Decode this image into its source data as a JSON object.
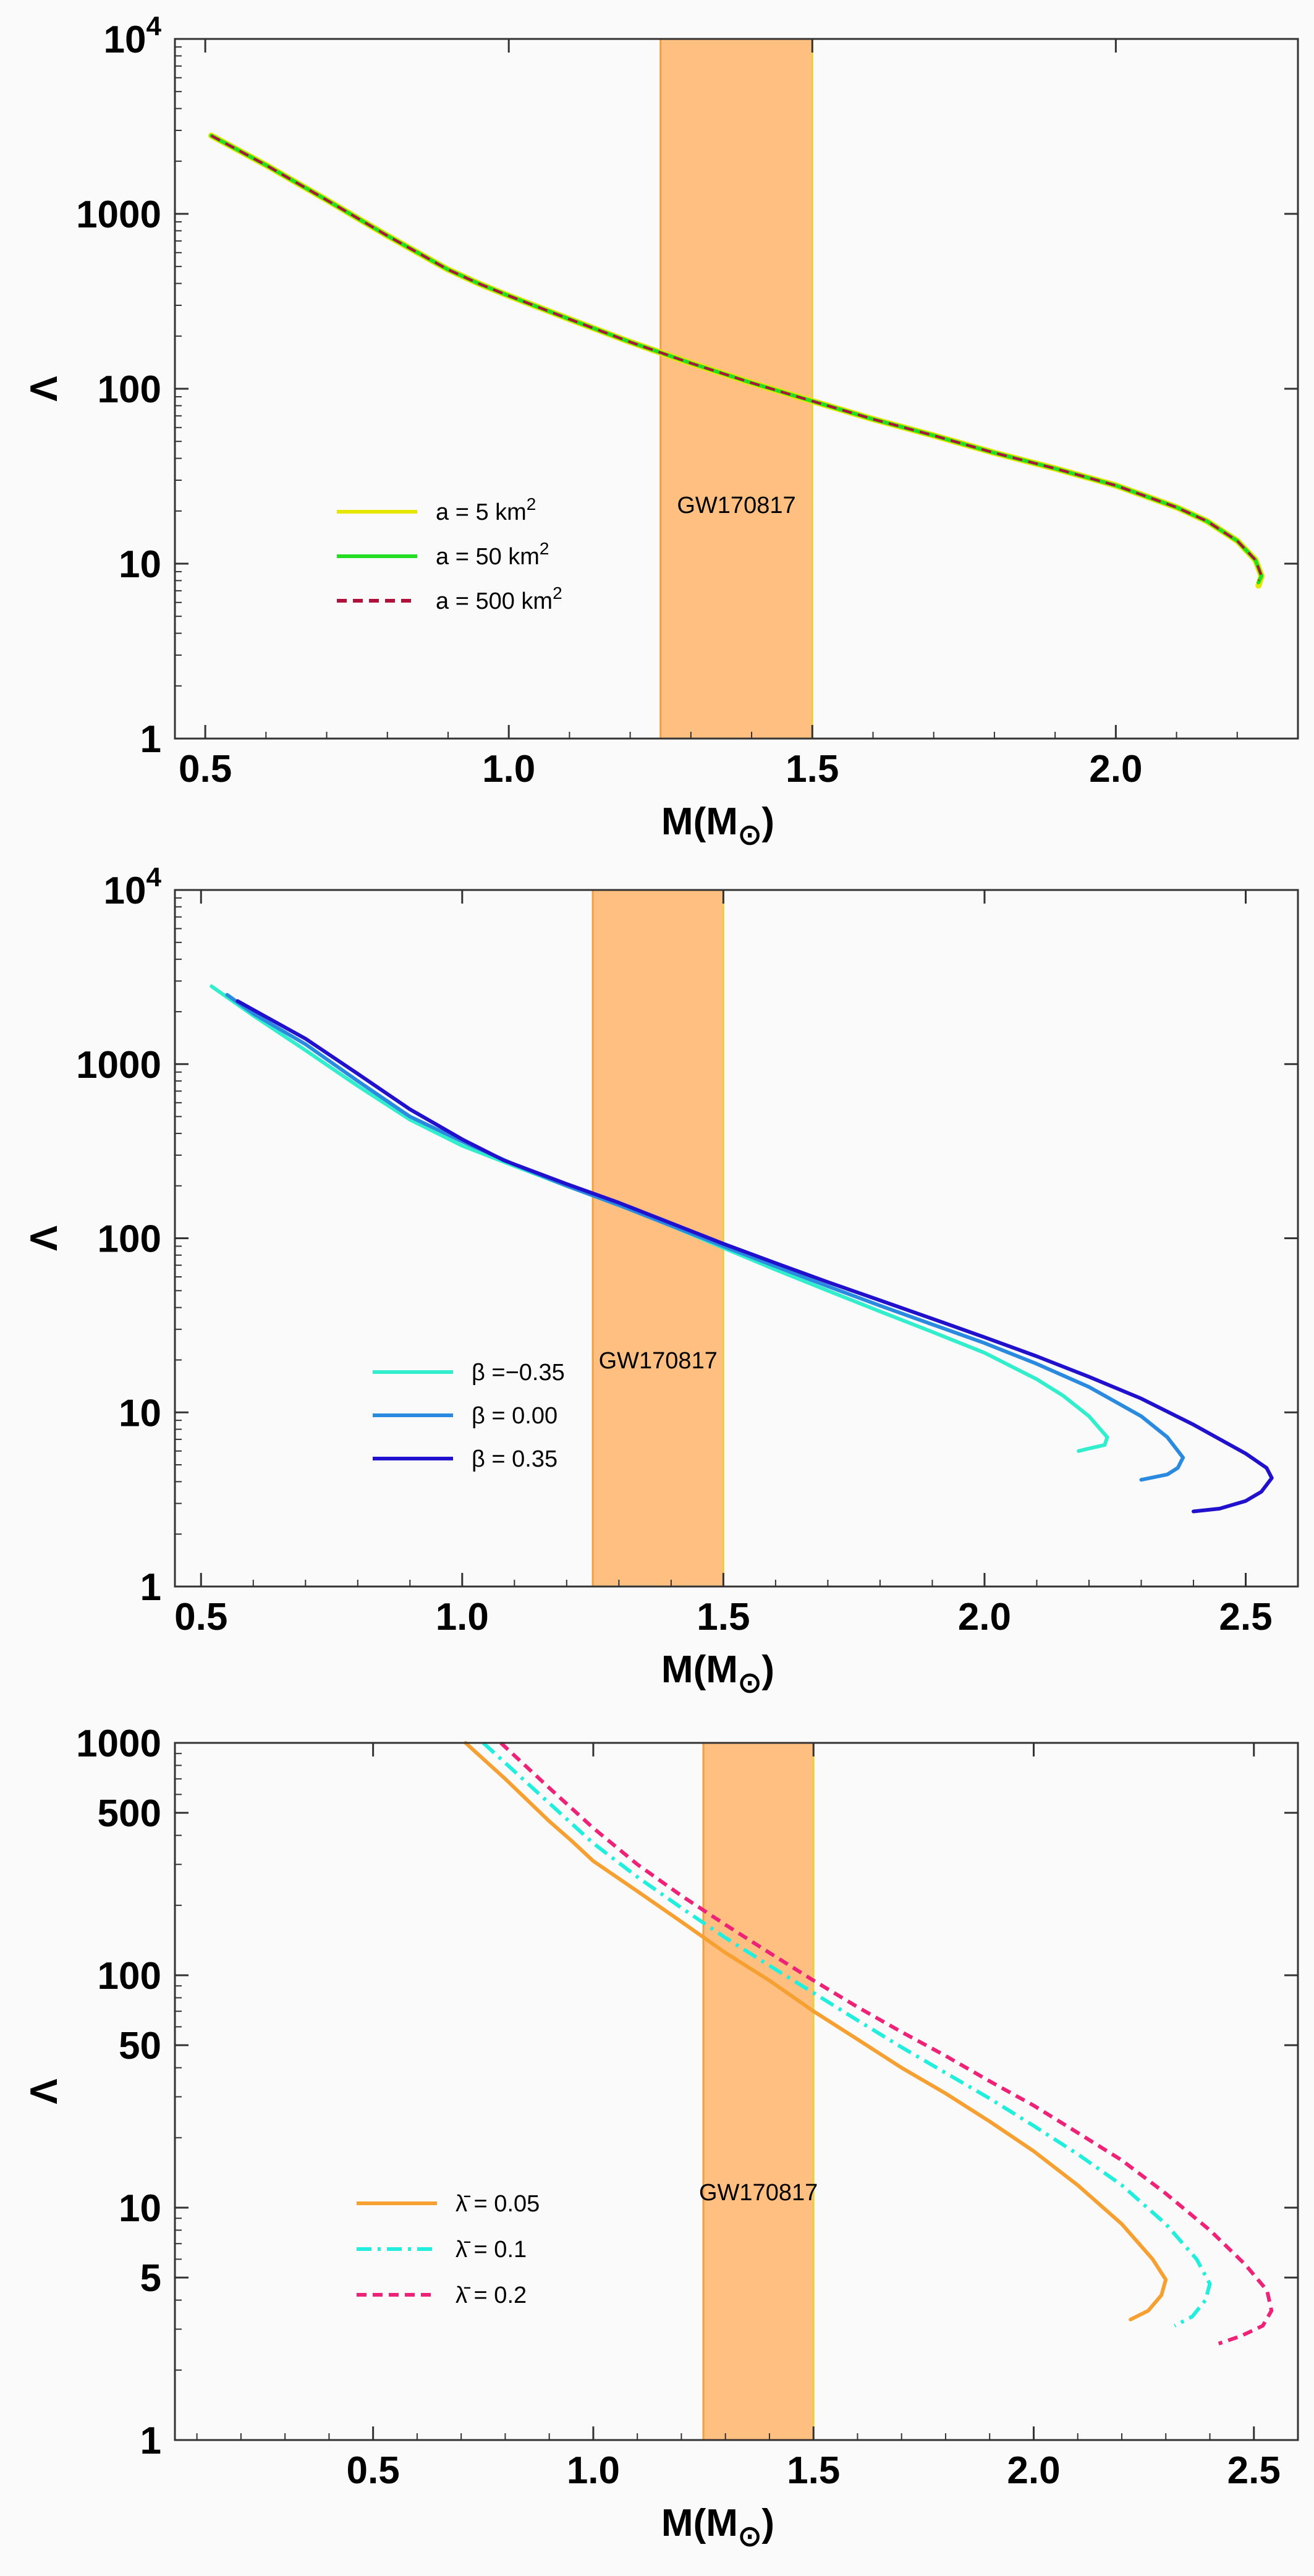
{
  "chart_data": [
    {
      "type": "line",
      "xlabel": "M(M⊙)",
      "ylabel": "Λ",
      "xlim": [
        0.45,
        2.3
      ],
      "ylim": [
        1,
        10000
      ],
      "yscale": "log",
      "x_ticks": [
        0.5,
        1.0,
        1.5,
        2.0
      ],
      "x_tick_labels": [
        "0.5",
        "1.0",
        "1.5",
        "2.0"
      ],
      "y_ticks": [
        1,
        10,
        100,
        1000,
        10000
      ],
      "y_tick_labels": [
        "1",
        "10",
        "100",
        "1000",
        "10⁴"
      ],
      "band": {
        "label": "GW170817",
        "x_range": [
          1.25,
          1.5
        ],
        "color": "#ffbf80"
      },
      "legend_position": "left-middle",
      "series": [
        {
          "name": "a = 5 km²",
          "color": "#e6e600",
          "style": "solid",
          "width": 10,
          "x": [
            0.51,
            0.6,
            0.7,
            0.8,
            0.9,
            0.95,
            1.0,
            1.1,
            1.2,
            1.3,
            1.4,
            1.5,
            1.6,
            1.7,
            1.8,
            1.9,
            2.0,
            2.1,
            2.15,
            2.2,
            2.23,
            2.24,
            2.235
          ],
          "y": [
            2800,
            1900,
            1200,
            750,
            480,
            400,
            340,
            250,
            185,
            140,
            108,
            85,
            67,
            54,
            43,
            35,
            28,
            21,
            17.5,
            13.5,
            10.5,
            8.5,
            7.5
          ]
        },
        {
          "name": "a = 50 km²",
          "color": "#22dd22",
          "style": "solid",
          "width": 6,
          "x": [
            0.51,
            0.6,
            0.7,
            0.8,
            0.9,
            0.95,
            1.0,
            1.1,
            1.2,
            1.3,
            1.4,
            1.5,
            1.6,
            1.7,
            1.8,
            1.9,
            2.0,
            2.1,
            2.15,
            2.2,
            2.23,
            2.24,
            2.235
          ],
          "y": [
            2800,
            1900,
            1200,
            750,
            480,
            400,
            340,
            250,
            185,
            140,
            108,
            85,
            67,
            54,
            43,
            35,
            28,
            21,
            17.5,
            13.5,
            10.5,
            8.5,
            7.8
          ]
        },
        {
          "name": "a = 500 km²",
          "color": "#b0103a",
          "style": "dashed",
          "width": 4,
          "x": [
            0.51,
            0.6,
            0.7,
            0.8,
            0.9,
            0.95,
            1.0,
            1.1,
            1.2,
            1.3,
            1.4,
            1.5,
            1.6,
            1.7,
            1.8,
            1.9,
            2.0,
            2.1,
            2.15,
            2.2,
            2.23,
            2.24,
            2.235
          ],
          "y": [
            2800,
            1900,
            1200,
            750,
            480,
            400,
            340,
            250,
            185,
            140,
            108,
            85,
            67,
            54,
            43,
            35,
            28,
            21,
            17.5,
            13.5,
            10.5,
            8.5,
            8
          ]
        }
      ]
    },
    {
      "type": "line",
      "xlabel": "M(M⊙)",
      "ylabel": "Λ",
      "xlim": [
        0.45,
        2.6
      ],
      "ylim": [
        1,
        10000
      ],
      "yscale": "log",
      "x_ticks": [
        0.5,
        1.0,
        1.5,
        2.0,
        2.5
      ],
      "x_tick_labels": [
        "0.5",
        "1.0",
        "1.5",
        "2.0",
        "2.5"
      ],
      "y_ticks": [
        1,
        10,
        100,
        1000,
        10000
      ],
      "y_tick_labels": [
        "1",
        "10",
        "100",
        "1000",
        "10⁴"
      ],
      "band": {
        "label": "GW170817",
        "x_range": [
          1.25,
          1.5
        ],
        "color": "#ffbf80"
      },
      "legend_position": "left-middle",
      "series": [
        {
          "name": "β =−0.35",
          "color": "#33eecc",
          "style": "solid",
          "width": 6,
          "x": [
            0.52,
            0.6,
            0.7,
            0.8,
            0.9,
            1.0,
            1.1,
            1.2,
            1.3,
            1.4,
            1.5,
            1.6,
            1.7,
            1.8,
            1.9,
            2.0,
            2.1,
            2.15,
            2.2,
            2.235,
            2.23,
            2.2,
            2.18
          ],
          "y": [
            2800,
            1900,
            1200,
            750,
            480,
            340,
            260,
            200,
            155,
            118,
            88,
            66,
            50,
            38,
            29,
            22,
            15.5,
            12.5,
            9.5,
            7.2,
            6.5,
            6.2,
            6
          ]
        },
        {
          "name": "β = 0.00",
          "color": "#2a8ae0",
          "style": "solid",
          "width": 6,
          "x": [
            0.55,
            0.6,
            0.7,
            0.8,
            0.9,
            1.0,
            1.1,
            1.2,
            1.3,
            1.4,
            1.5,
            1.6,
            1.7,
            1.8,
            1.9,
            2.0,
            2.1,
            2.2,
            2.3,
            2.35,
            2.38,
            2.37,
            2.35,
            2.3
          ],
          "y": [
            2500,
            1950,
            1300,
            800,
            500,
            360,
            265,
            200,
            155,
            118,
            90,
            69,
            53,
            41,
            32,
            25,
            19,
            14,
            9.5,
            7.2,
            5.5,
            4.8,
            4.4,
            4.1
          ]
        },
        {
          "name": "β = 0.35",
          "color": "#2211cc",
          "style": "solid",
          "width": 6,
          "x": [
            0.57,
            0.6,
            0.7,
            0.8,
            0.9,
            1.0,
            1.08,
            1.2,
            1.3,
            1.4,
            1.5,
            1.6,
            1.7,
            1.8,
            1.9,
            2.0,
            2.1,
            2.2,
            2.3,
            2.4,
            2.5,
            2.54,
            2.55,
            2.53,
            2.5,
            2.45,
            2.4
          ],
          "y": [
            2300,
            2050,
            1400,
            880,
            550,
            370,
            280,
            205,
            160,
            122,
            93,
            72,
            56,
            44,
            34.5,
            27,
            21,
            16,
            12,
            8.5,
            5.8,
            4.8,
            4.2,
            3.5,
            3.1,
            2.8,
            2.7
          ]
        }
      ]
    },
    {
      "type": "line",
      "xlabel": "M(M⊙)",
      "ylabel": "Λ",
      "xlim": [
        0.05,
        2.6
      ],
      "ylim": [
        1,
        1000
      ],
      "yscale": "log",
      "x_ticks": [
        0.5,
        1.0,
        1.5,
        2.0,
        2.5
      ],
      "x_tick_labels": [
        "0.5",
        "1.0",
        "1.5",
        "2.0",
        "2.5"
      ],
      "y_ticks": [
        1,
        5,
        10,
        50,
        100,
        500,
        1000
      ],
      "y_tick_labels": [
        "1",
        "5",
        "10",
        "50",
        "100",
        "500",
        "1000"
      ],
      "band": {
        "label": "GW170817",
        "x_range": [
          1.25,
          1.5
        ],
        "color": "#ffbf80"
      },
      "legend_position": "left-middle",
      "series": [
        {
          "name": "λ̄ = 0.05",
          "color": "#f5a030",
          "style": "solid",
          "width": 6,
          "x": [
            0.71,
            0.8,
            0.9,
            0.95,
            1.0,
            1.1,
            1.2,
            1.3,
            1.4,
            1.5,
            1.6,
            1.7,
            1.8,
            1.9,
            2.0,
            2.1,
            2.2,
            2.27,
            2.3,
            2.29,
            2.26,
            2.22
          ],
          "y": [
            1000,
            700,
            460,
            380,
            310,
            230,
            170,
            125,
            95,
            70,
            53,
            40,
            31,
            23.5,
            17.5,
            12.5,
            8.5,
            6,
            4.9,
            4.2,
            3.6,
            3.3
          ]
        },
        {
          "name": "λ̄ = 0.1",
          "color": "#22eedd",
          "style": "dashdot",
          "width": 6,
          "x": [
            0.75,
            0.8,
            0.9,
            1.0,
            1.1,
            1.2,
            1.3,
            1.4,
            1.5,
            1.6,
            1.7,
            1.8,
            1.9,
            2.0,
            2.1,
            2.2,
            2.3,
            2.37,
            2.4,
            2.39,
            2.36,
            2.32
          ],
          "y": [
            1000,
            820,
            550,
            370,
            265,
            195,
            145,
            110,
            84,
            64,
            49,
            38,
            29.5,
            22.5,
            17,
            12.5,
            8.5,
            6,
            4.7,
            4,
            3.4,
            3.1
          ]
        },
        {
          "name": "λ̄ = 0.2",
          "color": "#ee2277",
          "style": "dashed",
          "width": 6,
          "x": [
            0.79,
            0.9,
            1.0,
            1.1,
            1.2,
            1.3,
            1.4,
            1.5,
            1.6,
            1.7,
            1.8,
            1.9,
            2.0,
            2.1,
            2.2,
            2.3,
            2.4,
            2.48,
            2.53,
            2.54,
            2.52,
            2.47,
            2.42
          ],
          "y": [
            1000,
            640,
            430,
            300,
            220,
            165,
            125,
            95,
            73,
            57,
            45,
            35,
            27.5,
            21,
            16,
            11.5,
            8,
            5.7,
            4.4,
            3.6,
            3.1,
            2.8,
            2.6
          ]
        }
      ]
    }
  ]
}
